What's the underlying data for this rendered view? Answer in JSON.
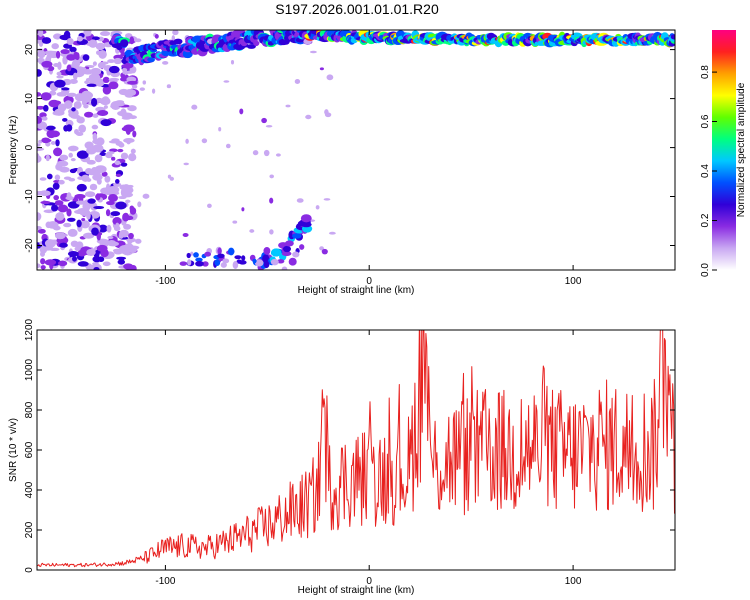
{
  "title": "S197.2026.001.01.01.R20",
  "colors": {
    "snr_line": "#e8211f",
    "frame": "#000000"
  },
  "colormap": [
    "#ffffff",
    "#c9a8f2",
    "#8a2be2",
    "#3000d8",
    "#0050ff",
    "#00c8ff",
    "#00ff80",
    "#60ff00",
    "#ffff00",
    "#ffa000",
    "#ff2020",
    "#ff0080"
  ],
  "chart_data": [
    {
      "type": "heatmap",
      "xlabel": "Height of straight line (km)",
      "ylabel": "Frequency (Hz)",
      "xlim": [
        -163,
        150
      ],
      "ylim": [
        -25,
        24
      ],
      "xticks": [
        -100,
        0,
        100
      ],
      "yticks": [
        -20,
        -10,
        0,
        10,
        20
      ],
      "ridge": {
        "description_points": [
          [
            -120,
            18
          ],
          [
            -100,
            20
          ],
          [
            -80,
            21
          ],
          [
            -60,
            22
          ],
          [
            -40,
            23
          ],
          [
            -30,
            23
          ],
          [
            0,
            22.5
          ],
          [
            50,
            22
          ],
          [
            100,
            22
          ],
          [
            150,
            22
          ]
        ],
        "peak_amplitude": 0.95
      },
      "low_branch": [
        [
          -55,
          -24
        ],
        [
          -45,
          -22
        ],
        [
          -35,
          -18
        ],
        [
          -30,
          -15
        ]
      ],
      "colorbar": {
        "label": "Normalized spectral amplitude",
        "range": [
          0.0,
          0.97
        ],
        "ticks": [
          0.0,
          0.2,
          0.4,
          0.6,
          0.8
        ]
      }
    },
    {
      "type": "line",
      "xlabel": "Height of straight line (km)",
      "ylabel": "SNR (10 * v/v)",
      "xlim": [
        -163,
        150
      ],
      "ylim": [
        0,
        1200
      ],
      "xticks": [
        -100,
        0,
        100
      ],
      "yticks": [
        0,
        200,
        400,
        600,
        800,
        1000,
        1200
      ],
      "series": [
        {
          "x": [
            -163,
            -150,
            -140,
            -130,
            -120,
            -110,
            -100,
            -90,
            -80,
            -70,
            -60,
            -50,
            -40,
            -30,
            -25,
            -22,
            -20,
            -10,
            0,
            10,
            20,
            28,
            30,
            40,
            50,
            60,
            70,
            80,
            90,
            100,
            110,
            120,
            130,
            140,
            145,
            150
          ],
          "y": [
            25,
            25,
            25,
            28,
            35,
            60,
            110,
            120,
            110,
            140,
            180,
            220,
            280,
            330,
            400,
            880,
            420,
            450,
            470,
            480,
            510,
            1200,
            520,
            560,
            580,
            600,
            580,
            610,
            600,
            580,
            620,
            620,
            600,
            620,
            1180,
            520
          ]
        }
      ]
    }
  ]
}
